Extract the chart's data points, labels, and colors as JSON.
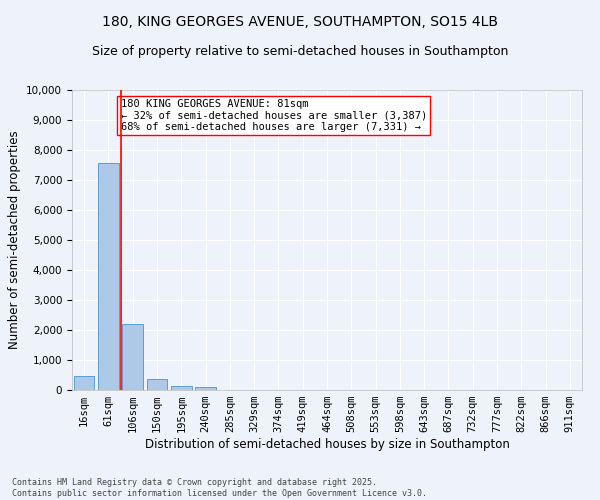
{
  "title1": "180, KING GEORGES AVENUE, SOUTHAMPTON, SO15 4LB",
  "title2": "Size of property relative to semi-detached houses in Southampton",
  "xlabel": "Distribution of semi-detached houses by size in Southampton",
  "ylabel": "Number of semi-detached properties",
  "categories": [
    "16sqm",
    "61sqm",
    "106sqm",
    "150sqm",
    "195sqm",
    "240sqm",
    "285sqm",
    "329sqm",
    "374sqm",
    "419sqm",
    "464sqm",
    "508sqm",
    "553sqm",
    "598sqm",
    "643sqm",
    "687sqm",
    "732sqm",
    "777sqm",
    "822sqm",
    "866sqm",
    "911sqm"
  ],
  "values": [
    480,
    7580,
    2200,
    370,
    130,
    100,
    0,
    0,
    0,
    0,
    0,
    0,
    0,
    0,
    0,
    0,
    0,
    0,
    0,
    0,
    0
  ],
  "bar_color": "#aec8e8",
  "bar_edgecolor": "#5a9fd4",
  "property_line_x": 1.5,
  "annotation_text": "180 KING GEORGES AVENUE: 81sqm\n← 32% of semi-detached houses are smaller (3,387)\n68% of semi-detached houses are larger (7,331) →",
  "ylim": [
    0,
    10000
  ],
  "yticks": [
    0,
    1000,
    2000,
    3000,
    4000,
    5000,
    6000,
    7000,
    8000,
    9000,
    10000
  ],
  "bg_color": "#eef2fb",
  "grid_color": "#ffffff",
  "footer": "Contains HM Land Registry data © Crown copyright and database right 2025.\nContains public sector information licensed under the Open Government Licence v3.0.",
  "title_fontsize": 10,
  "subtitle_fontsize": 9,
  "axis_label_fontsize": 8.5,
  "tick_fontsize": 7.5,
  "annot_fontsize": 7.5,
  "footer_fontsize": 6
}
